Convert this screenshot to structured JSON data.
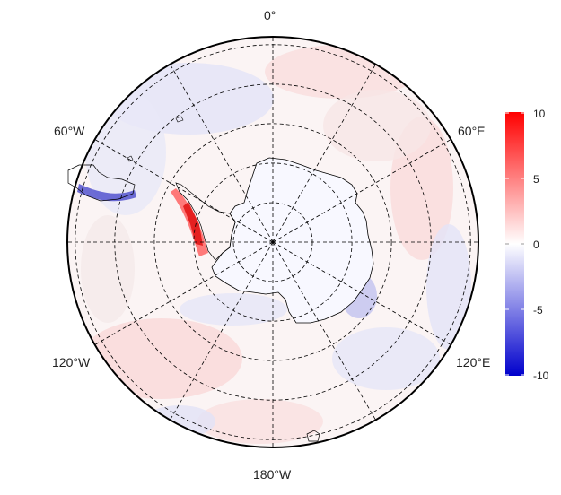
{
  "map": {
    "projection": "south-polar-stereographic",
    "meridian_labels": {
      "top": "0°",
      "upper_left": "60°W",
      "upper_right": "60°E",
      "lower_left": "120°W",
      "lower_right": "120°E",
      "bottom": "180°W"
    },
    "meridian_lines_deg": [
      0,
      30,
      60,
      90,
      120,
      150,
      180,
      210,
      240,
      270,
      300,
      330
    ],
    "latitude_circles": 5,
    "colorbar": {
      "ticks": [
        "10",
        "5",
        "0",
        "-5",
        "-10"
      ],
      "range": [
        -10,
        10
      ],
      "colors": {
        "max": "#ff0000",
        "mid": "#ffffff",
        "min": "#0000cc"
      }
    },
    "style": {
      "land_fill": "#f8f8ff",
      "coast": "#000000",
      "grid": "#000000",
      "frame": "#000000"
    }
  }
}
